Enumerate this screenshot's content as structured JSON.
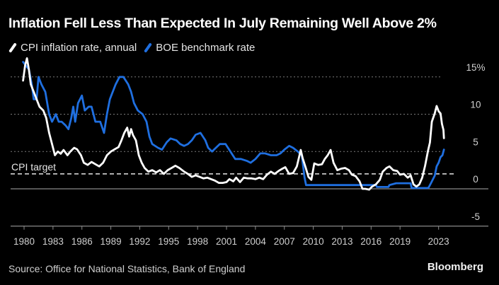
{
  "header": {
    "title": "Inflation Fell Less Than Expected In July Remaining Well Above 2%"
  },
  "footer": {
    "source": "Source: Office for National Statistics, Bank of England",
    "brand": "Bloomberg"
  },
  "chart_data": {
    "type": "line",
    "title": "Inflation Fell Less Than Expected In July Remaining Well Above 2%",
    "xlabel": "",
    "ylabel": "",
    "x_range": [
      1979.9,
      2023.6
    ],
    "ylim": [
      -5,
      17.5
    ],
    "y_ticks": [
      {
        "value": 15,
        "label": "15%"
      },
      {
        "value": 10,
        "label": "10"
      },
      {
        "value": 5,
        "label": "5"
      },
      {
        "value": 0,
        "label": "0"
      },
      {
        "value": -5,
        "label": "-5"
      }
    ],
    "x_ticks": [
      {
        "value": 1980,
        "label": "1980"
      },
      {
        "value": 1983,
        "label": "1983"
      },
      {
        "value": 1986,
        "label": "1986"
      },
      {
        "value": 1989,
        "label": "1989"
      },
      {
        "value": 1992,
        "label": "1992"
      },
      {
        "value": 1995,
        "label": "1995"
      },
      {
        "value": 1998,
        "label": "1998"
      },
      {
        "value": 2001,
        "label": "2001"
      },
      {
        "value": 2004,
        "label": "2004"
      },
      {
        "value": 2007,
        "label": "2007"
      },
      {
        "value": 2010,
        "label": "2010"
      },
      {
        "value": 2013,
        "label": "2013"
      },
      {
        "value": 2016,
        "label": "2016"
      },
      {
        "value": 2019,
        "label": "2019"
      },
      {
        "value": 2023,
        "label": "2023"
      }
    ],
    "grid": true,
    "legend_position": "top-left",
    "annotations": [
      {
        "label": "CPI target",
        "value": 2,
        "style": "dashed-line"
      }
    ],
    "series": [
      {
        "name": "CPI inflation rate, annual",
        "color": "#ffffff",
        "points": [
          [
            1979.9,
            14.5
          ],
          [
            1980.1,
            16.5
          ],
          [
            1980.3,
            17.5
          ],
          [
            1980.5,
            16.0
          ],
          [
            1980.7,
            14.0
          ],
          [
            1981.0,
            13.0
          ],
          [
            1981.3,
            12.0
          ],
          [
            1981.6,
            11.0
          ],
          [
            1982.0,
            10.5
          ],
          [
            1982.3,
            9.5
          ],
          [
            1982.6,
            7.5
          ],
          [
            1983.0,
            5.5
          ],
          [
            1983.2,
            4.5
          ],
          [
            1983.5,
            5.0
          ],
          [
            1983.8,
            4.7
          ],
          [
            1984.1,
            5.2
          ],
          [
            1984.5,
            4.5
          ],
          [
            1984.8,
            5.0
          ],
          [
            1985.2,
            5.5
          ],
          [
            1985.5,
            5.3
          ],
          [
            1985.9,
            4.5
          ],
          [
            1986.2,
            3.5
          ],
          [
            1986.6,
            3.2
          ],
          [
            1987.0,
            3.6
          ],
          [
            1987.4,
            3.3
          ],
          [
            1987.8,
            3.0
          ],
          [
            1988.2,
            3.5
          ],
          [
            1988.6,
            4.5
          ],
          [
            1989.0,
            5.0
          ],
          [
            1989.4,
            5.3
          ],
          [
            1989.8,
            5.6
          ],
          [
            1990.1,
            6.5
          ],
          [
            1990.4,
            7.5
          ],
          [
            1990.7,
            8.2
          ],
          [
            1990.9,
            7.0
          ],
          [
            1991.1,
            8.0
          ],
          [
            1991.3,
            7.2
          ],
          [
            1991.6,
            6.5
          ],
          [
            1991.9,
            4.5
          ],
          [
            1992.2,
            3.5
          ],
          [
            1992.5,
            2.8
          ],
          [
            1992.9,
            2.3
          ],
          [
            1993.3,
            2.5
          ],
          [
            1993.7,
            2.2
          ],
          [
            1994.1,
            2.5
          ],
          [
            1994.5,
            2.0
          ],
          [
            1994.9,
            2.5
          ],
          [
            1995.3,
            2.8
          ],
          [
            1995.7,
            3.1
          ],
          [
            1996.1,
            2.8
          ],
          [
            1996.6,
            2.3
          ],
          [
            1997.0,
            2.0
          ],
          [
            1997.4,
            1.6
          ],
          [
            1997.8,
            1.8
          ],
          [
            1998.2,
            1.6
          ],
          [
            1998.6,
            1.4
          ],
          [
            1999.0,
            1.5
          ],
          [
            1999.4,
            1.3
          ],
          [
            1999.8,
            1.1
          ],
          [
            2000.2,
            0.8
          ],
          [
            2000.6,
            0.8
          ],
          [
            2001.0,
            0.9
          ],
          [
            2001.3,
            1.3
          ],
          [
            2001.7,
            1.0
          ],
          [
            2002.0,
            1.5
          ],
          [
            2002.4,
            0.9
          ],
          [
            2002.8,
            1.5
          ],
          [
            2003.2,
            1.4
          ],
          [
            2003.6,
            1.4
          ],
          [
            2004.0,
            1.3
          ],
          [
            2004.4,
            1.5
          ],
          [
            2004.8,
            1.3
          ],
          [
            2005.2,
            1.9
          ],
          [
            2005.6,
            2.3
          ],
          [
            2006.0,
            2.0
          ],
          [
            2006.4,
            2.4
          ],
          [
            2006.8,
            2.7
          ],
          [
            2007.1,
            2.9
          ],
          [
            2007.5,
            2.0
          ],
          [
            2007.9,
            2.1
          ],
          [
            2008.3,
            3.0
          ],
          [
            2008.7,
            5.2
          ],
          [
            2008.9,
            4.1
          ],
          [
            2009.2,
            2.9
          ],
          [
            2009.5,
            1.6
          ],
          [
            2009.8,
            1.2
          ],
          [
            2010.1,
            3.4
          ],
          [
            2010.5,
            3.2
          ],
          [
            2010.9,
            3.3
          ],
          [
            2011.2,
            4.0
          ],
          [
            2011.5,
            4.5
          ],
          [
            2011.8,
            5.2
          ],
          [
            2012.1,
            3.5
          ],
          [
            2012.5,
            2.5
          ],
          [
            2012.9,
            2.7
          ],
          [
            2013.3,
            2.8
          ],
          [
            2013.7,
            2.5
          ],
          [
            2014.0,
            1.9
          ],
          [
            2014.4,
            1.7
          ],
          [
            2014.8,
            1.0
          ],
          [
            2015.1,
            0.0
          ],
          [
            2015.4,
            0.0
          ],
          [
            2015.8,
            -0.1
          ],
          [
            2016.1,
            0.3
          ],
          [
            2016.5,
            0.6
          ],
          [
            2016.9,
            1.2
          ],
          [
            2017.2,
            2.3
          ],
          [
            2017.6,
            2.8
          ],
          [
            2017.9,
            3.0
          ],
          [
            2018.3,
            2.5
          ],
          [
            2018.7,
            2.4
          ],
          [
            2019.0,
            1.9
          ],
          [
            2019.4,
            2.0
          ],
          [
            2019.8,
            1.5
          ],
          [
            2020.1,
            1.8
          ],
          [
            2020.4,
            0.6
          ],
          [
            2020.7,
            0.3
          ],
          [
            2021.0,
            0.6
          ],
          [
            2021.3,
            1.5
          ],
          [
            2021.6,
            3.1
          ],
          [
            2021.9,
            5.1
          ],
          [
            2022.1,
            6.2
          ],
          [
            2022.3,
            9.0
          ],
          [
            2022.6,
            10.1
          ],
          [
            2022.8,
            11.1
          ],
          [
            2023.0,
            10.4
          ],
          [
            2023.2,
            10.1
          ],
          [
            2023.35,
            8.7
          ],
          [
            2023.5,
            7.9
          ],
          [
            2023.55,
            6.8
          ]
        ]
      },
      {
        "name": "BOE benchmark rate",
        "color": "#1f6fe0",
        "points": [
          [
            1979.9,
            17.0
          ],
          [
            1980.5,
            16.0
          ],
          [
            1980.8,
            14.0
          ],
          [
            1981.0,
            12.0
          ],
          [
            1981.3,
            12.0
          ],
          [
            1981.5,
            15.0
          ],
          [
            1981.8,
            14.0
          ],
          [
            1982.2,
            13.0
          ],
          [
            1982.6,
            10.0
          ],
          [
            1982.9,
            9.0
          ],
          [
            1983.3,
            10.0
          ],
          [
            1983.6,
            9.0
          ],
          [
            1983.9,
            9.0
          ],
          [
            1984.3,
            8.5
          ],
          [
            1984.6,
            8.0
          ],
          [
            1984.9,
            9.5
          ],
          [
            1985.1,
            11.0
          ],
          [
            1985.3,
            9.0
          ],
          [
            1985.6,
            11.5
          ],
          [
            1986.0,
            12.5
          ],
          [
            1986.3,
            10.5
          ],
          [
            1986.7,
            11.0
          ],
          [
            1987.0,
            11.0
          ],
          [
            1987.4,
            9.0
          ],
          [
            1987.9,
            9.0
          ],
          [
            1988.3,
            7.5
          ],
          [
            1988.6,
            10.0
          ],
          [
            1988.9,
            12.0
          ],
          [
            1989.2,
            13.0
          ],
          [
            1989.5,
            14.0
          ],
          [
            1989.9,
            15.0
          ],
          [
            1990.3,
            15.0
          ],
          [
            1990.8,
            14.0
          ],
          [
            1991.1,
            13.0
          ],
          [
            1991.4,
            11.5
          ],
          [
            1991.8,
            10.5
          ],
          [
            1992.3,
            10.0
          ],
          [
            1992.7,
            9.0
          ],
          [
            1993.0,
            7.0
          ],
          [
            1993.3,
            6.0
          ],
          [
            1993.9,
            5.5
          ],
          [
            1994.3,
            5.25
          ],
          [
            1994.8,
            6.25
          ],
          [
            1995.2,
            6.75
          ],
          [
            1995.8,
            6.5
          ],
          [
            1996.2,
            6.0
          ],
          [
            1996.6,
            5.75
          ],
          [
            1997.0,
            6.0
          ],
          [
            1997.4,
            6.5
          ],
          [
            1997.8,
            7.25
          ],
          [
            1998.3,
            7.5
          ],
          [
            1998.8,
            6.5
          ],
          [
            1999.1,
            5.5
          ],
          [
            1999.5,
            5.0
          ],
          [
            1999.9,
            5.5
          ],
          [
            2000.3,
            6.0
          ],
          [
            2000.9,
            6.0
          ],
          [
            2001.4,
            5.0
          ],
          [
            2001.9,
            4.0
          ],
          [
            2002.5,
            4.0
          ],
          [
            2003.1,
            3.75
          ],
          [
            2003.5,
            3.5
          ],
          [
            2004.0,
            4.0
          ],
          [
            2004.5,
            4.75
          ],
          [
            2005.0,
            4.75
          ],
          [
            2005.6,
            4.5
          ],
          [
            2006.2,
            4.5
          ],
          [
            2006.6,
            4.75
          ],
          [
            2007.0,
            5.25
          ],
          [
            2007.5,
            5.75
          ],
          [
            2007.9,
            5.5
          ],
          [
            2008.4,
            5.0
          ],
          [
            2008.8,
            4.5
          ],
          [
            2008.95,
            3.0
          ],
          [
            2009.1,
            1.5
          ],
          [
            2009.25,
            0.5
          ],
          [
            2011.0,
            0.5
          ],
          [
            2013.0,
            0.5
          ],
          [
            2016.5,
            0.5
          ],
          [
            2016.6,
            0.25
          ],
          [
            2017.8,
            0.25
          ],
          [
            2017.9,
            0.5
          ],
          [
            2018.6,
            0.75
          ],
          [
            2020.1,
            0.75
          ],
          [
            2020.2,
            0.1
          ],
          [
            2021.9,
            0.1
          ],
          [
            2022.0,
            0.25
          ],
          [
            2022.2,
            0.75
          ],
          [
            2022.4,
            1.25
          ],
          [
            2022.6,
            1.75
          ],
          [
            2022.8,
            3.0
          ],
          [
            2023.0,
            3.5
          ],
          [
            2023.2,
            4.25
          ],
          [
            2023.4,
            4.5
          ],
          [
            2023.55,
            5.25
          ]
        ]
      }
    ]
  }
}
